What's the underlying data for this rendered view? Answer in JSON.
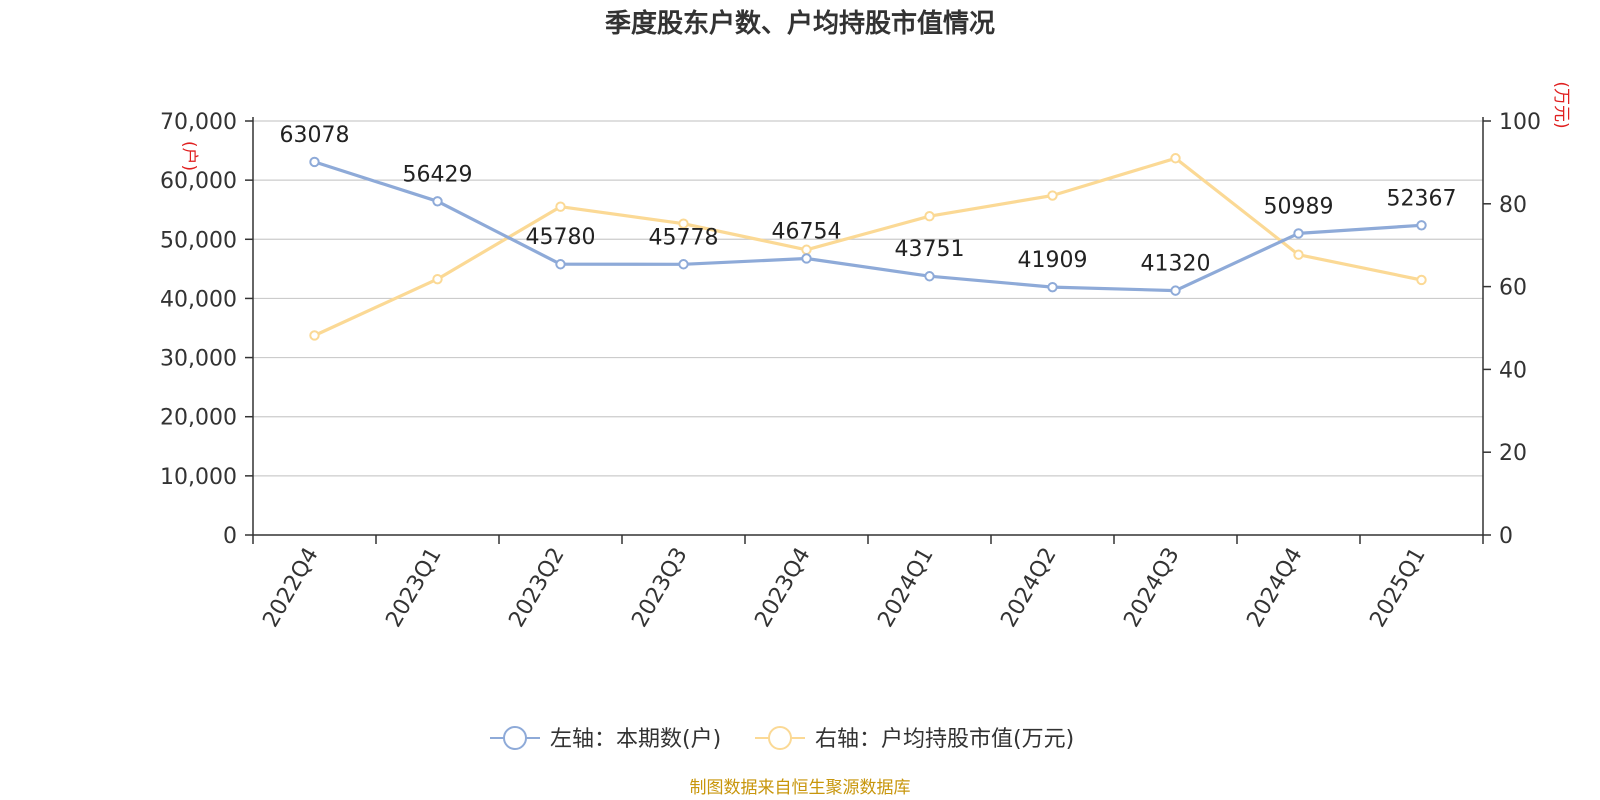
{
  "chart_data": {
    "type": "line",
    "title": "季度股东户数、户均持股市值情况",
    "categories": [
      "2022Q4",
      "2023Q1",
      "2023Q2",
      "2023Q3",
      "2023Q4",
      "2024Q1",
      "2024Q2",
      "2024Q3",
      "2024Q4",
      "2025Q1"
    ],
    "series": [
      {
        "name": "左轴：本期数(户)",
        "axis": "left",
        "color": "#8eaad8",
        "values": [
          63078,
          56429,
          45780,
          45778,
          46754,
          43751,
          41909,
          41320,
          50989,
          52367
        ],
        "data_labels": [
          "63078",
          "56429",
          "45780",
          "45778",
          "46754",
          "43751",
          "41909",
          "41320",
          "50989",
          "52367"
        ]
      },
      {
        "name": "右轴：户均持股市值(万元)",
        "axis": "right",
        "color": "#fbd995",
        "values": [
          48.2,
          61.8,
          79.3,
          75.2,
          68.9,
          77.0,
          82.0,
          91.0,
          67.7,
          61.6
        ]
      }
    ],
    "left_axis": {
      "unit": "(户)",
      "ylim": [
        0,
        70000
      ],
      "ticks": [
        0,
        10000,
        20000,
        30000,
        40000,
        50000,
        60000,
        70000
      ],
      "tick_labels": [
        "0",
        "10,000",
        "20,000",
        "30,000",
        "40,000",
        "50,000",
        "60,000",
        "70,000"
      ]
    },
    "right_axis": {
      "unit": "(万元)",
      "ylim": [
        0,
        100
      ],
      "ticks": [
        0,
        20,
        40,
        60,
        80,
        100
      ],
      "tick_labels": [
        "0",
        "20",
        "40",
        "60",
        "80",
        "100"
      ]
    },
    "grid": true,
    "legend_position": "bottom-center"
  },
  "source_text": "制图数据来自恒生聚源数据库"
}
